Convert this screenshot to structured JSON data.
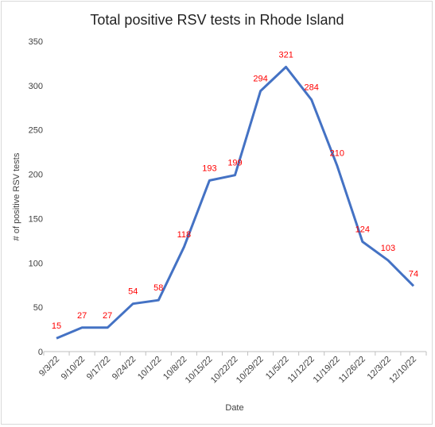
{
  "chart_data": {
    "type": "line",
    "title": "Total positive RSV tests in Rhode Island",
    "xlabel": "Date",
    "ylabel": "# of positive RSV tests",
    "categories": [
      "9/3/22",
      "9/10/22",
      "9/17/22",
      "9/24/22",
      "10/1/22",
      "10/8/22",
      "10/15/22",
      "10/22/22",
      "10/29/22",
      "11/5/22",
      "11/12/22",
      "11/19/22",
      "11/26/22",
      "12/3/22",
      "12/10/22"
    ],
    "values": [
      15,
      27,
      27,
      54,
      58,
      118,
      193,
      199,
      294,
      321,
      284,
      210,
      124,
      103,
      74
    ],
    "ylim": [
      0,
      350
    ],
    "yticks": [
      0,
      50,
      100,
      150,
      200,
      250,
      300,
      350
    ],
    "grid": false,
    "data_labels": true,
    "colors": {
      "line": "#4472c4",
      "data_label": "#ff0000"
    }
  }
}
